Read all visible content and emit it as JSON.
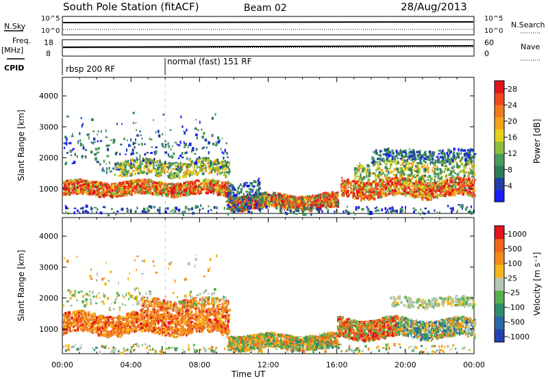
{
  "header": {
    "station": "South Pole Station (fitACF)",
    "beam": "Beam 02",
    "date": "28/Aug/2013"
  },
  "info_panels": {
    "nsky_label": "N.Sky",
    "nsky_ticks": [
      "10^5",
      "10^0"
    ],
    "nsearch_label": "N.Search",
    "nsearch_ticks": [
      "10^5",
      "10^0"
    ],
    "freq_label_line1": "Freq.",
    "freq_label_line2": "[MHz]",
    "freq_ticks": [
      "18",
      "8"
    ],
    "nave_label": "Nave",
    "nave_ticks": [
      "60",
      "0"
    ],
    "cpid_label": "CPID",
    "cpid_segments": [
      {
        "label": "rbsp 200 RF",
        "start_hour": 0
      },
      {
        "label": "normal (fast) 151 RF",
        "start_hour": 6
      }
    ]
  },
  "chart_data": [
    {
      "type": "heatmap",
      "panel": "power",
      "ylabel": "Slant Range [km]",
      "xlabel": "Time UT",
      "xlim": [
        0,
        24
      ],
      "ylim": [
        200,
        4600
      ],
      "yticks": [
        "1000",
        "2000",
        "3000",
        "4000"
      ],
      "xticks": [
        "00:00",
        "04:00",
        "08:00",
        "12:00",
        "16:00",
        "20:00",
        "00:00"
      ],
      "colorbar": {
        "label": "Power [dB]",
        "tick_labels": [
          "4",
          "8",
          "12",
          "16",
          "20",
          "24",
          "28"
        ],
        "colors": [
          "#1a1aff",
          "#1f3fa8",
          "#2e7d5a",
          "#4a9a5c",
          "#8dbf3a",
          "#e3d21c",
          "#f5a21c",
          "#f27a1c",
          "#ee4a1c",
          "#e0141c"
        ]
      }
    },
    {
      "type": "heatmap",
      "panel": "velocity",
      "ylabel": "Slant Range [km]",
      "xlabel": "Time UT",
      "xlim": [
        0,
        24
      ],
      "ylim": [
        200,
        4600
      ],
      "yticks": [
        "1000",
        "2000",
        "3000",
        "4000"
      ],
      "xticks": [
        "00:00",
        "04:00",
        "08:00",
        "12:00",
        "16:00",
        "20:00",
        "00:00"
      ],
      "colorbar": {
        "label": "Velocity [m s⁻¹]",
        "tick_labels": [
          "1000",
          "500",
          "100",
          "25",
          "-25",
          "-100",
          "-500",
          "-1000"
        ],
        "colors": [
          "#2343b4",
          "#2a68a8",
          "#2f8c6c",
          "#56b04c",
          "#b4c8b4",
          "#f5b61c",
          "#f28a1c",
          "#f0661c",
          "#e0141c"
        ]
      }
    }
  ]
}
